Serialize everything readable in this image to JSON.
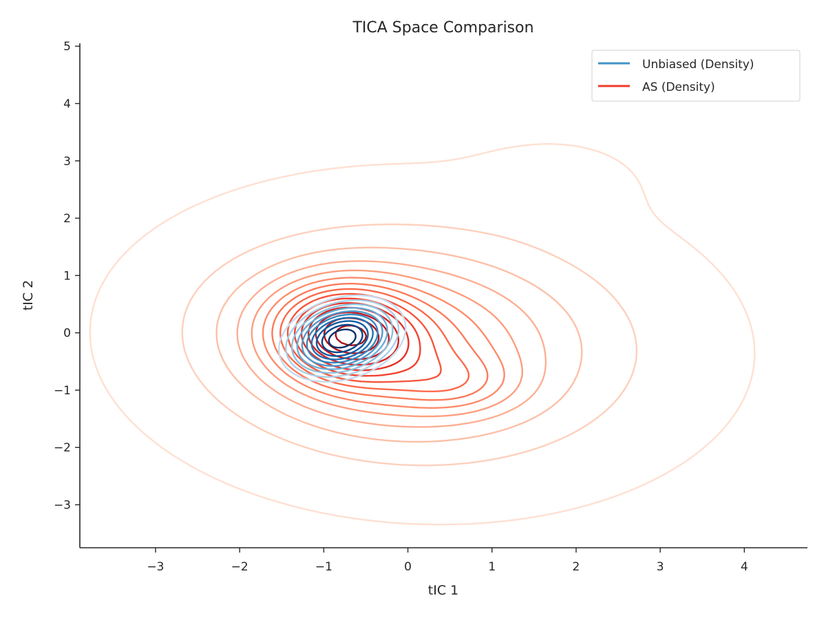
{
  "chart_data": {
    "type": "contour",
    "title": "TICA Space Comparison",
    "xlabel": "tIC 1",
    "ylabel": "tIC 2",
    "xlim": [
      -3.9,
      4.75
    ],
    "ylim": [
      -3.75,
      5.05
    ],
    "xticks": [
      -3,
      -2,
      -1,
      0,
      1,
      2,
      3,
      4
    ],
    "yticks": [
      -3,
      -2,
      -1,
      0,
      1,
      2,
      3,
      4,
      5
    ],
    "xtick_labels": [
      "−3",
      "−2",
      "−1",
      "0",
      "1",
      "2",
      "3",
      "4"
    ],
    "ytick_labels": [
      "−3",
      "−2",
      "−1",
      "0",
      "1",
      "2",
      "3",
      "4",
      "5"
    ],
    "grid": false,
    "legend_position": "top-right",
    "series": [
      {
        "name": "Unbiased (Density)",
        "color": "#4292c6",
        "colormap": "Blues",
        "mode": [
          -0.78,
          -0.1
        ],
        "shape": {
          "mx": -0.78,
          "my": -0.1,
          "sx": 0.42,
          "sy": 0.42,
          "rho": 0.25
        },
        "contour_extent_x": [
          -1.4,
          0.2
        ],
        "contour_extent_y": [
          -0.75,
          0.55
        ],
        "levels": 10
      },
      {
        "name": "AS (Density)",
        "color": "#ef3b2c",
        "colormap": "Reds",
        "mode": [
          -0.7,
          0.0
        ],
        "contour_extent_x": [
          -2.7,
          2.65
        ],
        "contour_extent_y": [
          -2.7,
          3.3
        ],
        "components": [
          {
            "w": 0.5,
            "mx": -0.75,
            "my": 0.0,
            "sx": 0.5,
            "sy": 0.5,
            "rho": -0.05
          },
          {
            "w": 0.3,
            "mx": -0.5,
            "my": -0.2,
            "sx": 0.95,
            "sy": 0.8,
            "rho": -0.15
          },
          {
            "w": 0.14,
            "mx": 0.6,
            "my": -0.9,
            "sx": 0.5,
            "sy": 0.35,
            "rho": 0.0
          },
          {
            "w": 0.24,
            "mx": 0.2,
            "my": -0.2,
            "sx": 1.5,
            "sy": 1.2,
            "rho": -0.05
          },
          {
            "w": 0.02,
            "mx": 1.75,
            "my": 2.6,
            "sx": 0.6,
            "sy": 0.45,
            "rho": 0.0
          }
        ],
        "levels": 15
      }
    ]
  }
}
